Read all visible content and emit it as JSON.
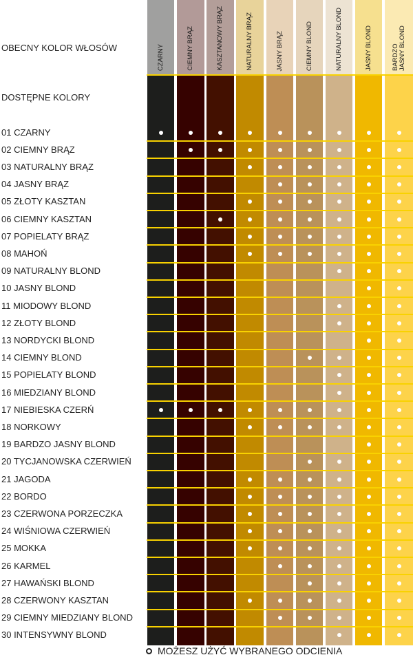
{
  "header_label": "OBECNY KOLOR WŁOSÓW",
  "available_label": "DOSTĘPNE KOLORY",
  "legend": {
    "icon": "circle-outline-icon",
    "text": "MOŻESZ UŻYĆ WYBRANEGO ODCIENIA"
  },
  "current_colors": [
    {
      "label": "CZARNY",
      "header_color": "#a0a09f",
      "body_color": "#1d1e1c"
    },
    {
      "label": "CIEMNY BRĄZ",
      "header_color": "#b29a98",
      "body_color": "#360200"
    },
    {
      "label": "KASZTANOWY BRĄZ",
      "header_color": "#b39e99",
      "body_color": "#431000"
    },
    {
      "label": "NATURALNY BRĄZ",
      "header_color": "#e8d39a",
      "body_color": "#c18a00"
    },
    {
      "label": "JASNY BRĄZ",
      "header_color": "#e8d3b8",
      "body_color": "#be8e55"
    },
    {
      "label": "CIEMNY BLOND",
      "header_color": "#e6d5bc",
      "body_color": "#b9925b"
    },
    {
      "label": "NATURALNY BLOND",
      "header_color": "#ede3d3",
      "body_color": "#cfb28a"
    },
    {
      "label": "JASNY BLOND",
      "header_color": "#f6e08f",
      "body_color": "#f0b800"
    },
    {
      "label": "BARDZO JASNY BLOND",
      "header_color": "#fbeab3",
      "body_color": "#fdd34a"
    }
  ],
  "separator_color": "#f9d200",
  "available_colors": [
    {
      "label": "01 CZARNY",
      "compatible": [
        1,
        1,
        1,
        1,
        1,
        1,
        1,
        1,
        1
      ]
    },
    {
      "label": "02 CIEMNY BRĄZ",
      "compatible": [
        0,
        1,
        1,
        1,
        1,
        1,
        1,
        1,
        1
      ]
    },
    {
      "label": "03 NATURALNY BRĄZ",
      "compatible": [
        0,
        0,
        0,
        1,
        1,
        1,
        1,
        1,
        1
      ]
    },
    {
      "label": "04 JASNY BRĄZ",
      "compatible": [
        0,
        0,
        0,
        0,
        1,
        1,
        1,
        1,
        1
      ]
    },
    {
      "label": "05 ZŁOTY KASZTAN",
      "compatible": [
        0,
        0,
        0,
        1,
        1,
        1,
        1,
        1,
        1
      ]
    },
    {
      "label": "06 CIEMNY KASZTAN",
      "compatible": [
        0,
        0,
        1,
        1,
        1,
        1,
        1,
        1,
        1
      ]
    },
    {
      "label": "07 POPIELATY BRĄZ",
      "compatible": [
        0,
        0,
        0,
        1,
        1,
        1,
        1,
        1,
        1
      ]
    },
    {
      "label": "08 MAHOŃ",
      "compatible": [
        0,
        0,
        0,
        1,
        1,
        1,
        1,
        1,
        1
      ]
    },
    {
      "label": "09 NATURALNY BLOND",
      "compatible": [
        0,
        0,
        0,
        0,
        0,
        0,
        1,
        1,
        1
      ]
    },
    {
      "label": "10 JASNY BLOND",
      "compatible": [
        0,
        0,
        0,
        0,
        0,
        0,
        0,
        1,
        1
      ]
    },
    {
      "label": "11 MIODOWY BLOND",
      "compatible": [
        0,
        0,
        0,
        0,
        0,
        0,
        1,
        1,
        1
      ]
    },
    {
      "label": "12 ZŁOTY BLOND",
      "compatible": [
        0,
        0,
        0,
        0,
        0,
        0,
        1,
        1,
        1
      ]
    },
    {
      "label": "13 NORDYCKI BLOND",
      "compatible": [
        0,
        0,
        0,
        0,
        0,
        0,
        0,
        1,
        1
      ]
    },
    {
      "label": "14 CIEMNY BLOND",
      "compatible": [
        0,
        0,
        0,
        0,
        0,
        1,
        1,
        1,
        1
      ]
    },
    {
      "label": "15 POPIELATY BLOND",
      "compatible": [
        0,
        0,
        0,
        0,
        0,
        0,
        1,
        1,
        1
      ]
    },
    {
      "label": "16 MIEDZIANY BLOND",
      "compatible": [
        0,
        0,
        0,
        0,
        0,
        0,
        1,
        1,
        1
      ]
    },
    {
      "label": "17 NIEBIESKA CZERŃ",
      "compatible": [
        1,
        1,
        1,
        1,
        1,
        1,
        1,
        1,
        1
      ]
    },
    {
      "label": "18 NORKOWY",
      "compatible": [
        0,
        0,
        0,
        1,
        1,
        1,
        1,
        1,
        1
      ]
    },
    {
      "label": "19 BARDZO JASNY BLOND",
      "compatible": [
        0,
        0,
        0,
        0,
        0,
        0,
        0,
        1,
        1
      ]
    },
    {
      "label": "20 TYCJANOWSKA CZERWIEŃ",
      "compatible": [
        0,
        0,
        0,
        0,
        0,
        1,
        1,
        1,
        1
      ]
    },
    {
      "label": "21 JAGODA",
      "compatible": [
        0,
        0,
        0,
        1,
        1,
        1,
        1,
        1,
        1
      ]
    },
    {
      "label": "22 BORDO",
      "compatible": [
        0,
        0,
        0,
        1,
        1,
        1,
        1,
        1,
        1
      ]
    },
    {
      "label": "23 CZERWONA PORZECZKA",
      "compatible": [
        0,
        0,
        0,
        1,
        1,
        1,
        1,
        1,
        1
      ]
    },
    {
      "label": "24 WIŚNIOWA CZERWIEŃ",
      "compatible": [
        0,
        0,
        0,
        1,
        1,
        1,
        1,
        1,
        1
      ]
    },
    {
      "label": "25 MOKKA",
      "compatible": [
        0,
        0,
        0,
        1,
        1,
        1,
        1,
        1,
        1
      ]
    },
    {
      "label": "26 KARMEL",
      "compatible": [
        0,
        0,
        0,
        0,
        1,
        1,
        1,
        1,
        1
      ]
    },
    {
      "label": "27 HAWAŃSKI BLOND",
      "compatible": [
        0,
        0,
        0,
        0,
        0,
        1,
        1,
        1,
        1
      ]
    },
    {
      "label": "28 CZERWONY KASZTAN",
      "compatible": [
        0,
        0,
        0,
        1,
        1,
        1,
        1,
        1,
        1
      ]
    },
    {
      "label": "29 CIEMNY MIEDZIANY BLOND",
      "compatible": [
        0,
        0,
        0,
        0,
        1,
        1,
        1,
        1,
        1
      ]
    },
    {
      "label": "30 INTENSYWNY BLOND",
      "compatible": [
        0,
        0,
        0,
        0,
        0,
        0,
        1,
        1,
        1
      ]
    }
  ]
}
